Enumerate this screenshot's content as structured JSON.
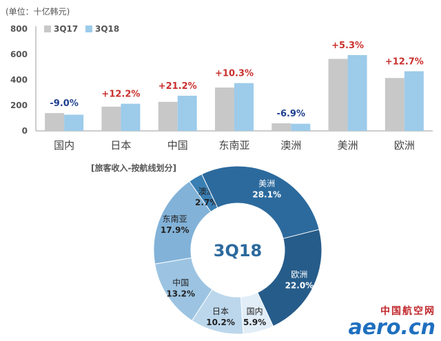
{
  "unit_label": "(单位：十亿韩元)",
  "colors": {
    "bar_3q17": "#c8c8c8",
    "bar_3q18": "#9dcbea",
    "growth_positive": "#c9302c",
    "growth_negative": "#1f3f8f",
    "donut": [
      "#e1edf7",
      "#bcd7ec",
      "#9cc4e2",
      "#82b2d8",
      "#3a7fb4",
      "#2c6a9d",
      "#265c8a"
    ]
  },
  "chart_data": [
    {
      "type": "bar",
      "categories": [
        "国内",
        "日本",
        "中国",
        "东南亚",
        "澳洲",
        "美洲",
        "欧洲"
      ],
      "series": [
        {
          "name": "3Q17",
          "values": [
            140,
            190,
            228,
            340,
            60,
            565,
            415
          ]
        },
        {
          "name": "3Q18",
          "values": [
            127,
            213,
            276,
            375,
            56,
            595,
            468
          ]
        }
      ],
      "growth_labels": [
        "-9.0%",
        "+12.2%",
        "+21.2%",
        "+10.3%",
        "-6.9%",
        "+5.3%",
        "+12.7%"
      ],
      "ylim": [
        0,
        800
      ],
      "yticks": [
        "0",
        "200",
        "400",
        "600",
        "800"
      ],
      "legend": "top-left"
    },
    {
      "type": "pie",
      "title": "[旅客收入-按航线划分]",
      "center_label": "3Q18",
      "slices": [
        {
          "label": "国内",
          "value": 5.9,
          "display": "5.9%"
        },
        {
          "label": "日本",
          "value": 10.2,
          "display": "10.2%"
        },
        {
          "label": "中国",
          "value": 13.2,
          "display": "13.2%"
        },
        {
          "label": "东南亚",
          "value": 17.9,
          "display": "17.9%"
        },
        {
          "label": "澳洲",
          "value": 2.7,
          "display": "2.7%"
        },
        {
          "label": "美洲",
          "value": 28.1,
          "display": "28.1%"
        },
        {
          "label": "欧洲",
          "value": 22.0,
          "display": "22.0%"
        }
      ]
    }
  ],
  "logo": {
    "cn": "中国航空网",
    "en": "aero.cn"
  }
}
